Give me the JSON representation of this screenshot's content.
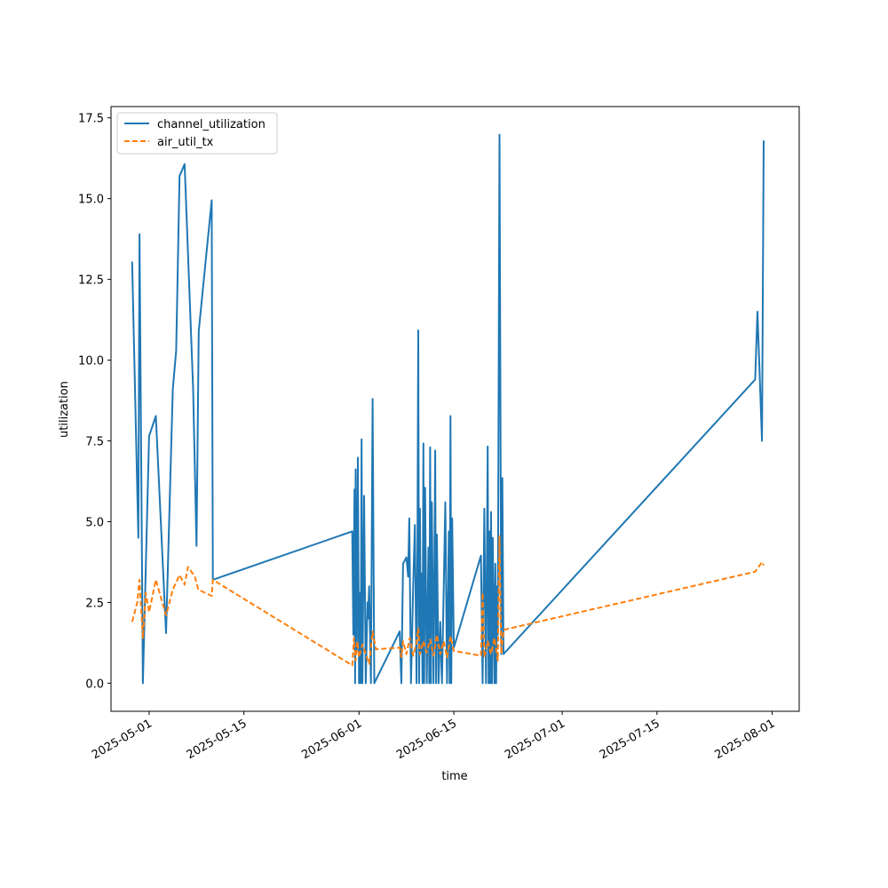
{
  "chart_data": {
    "type": "line",
    "title": "",
    "xlabel": "time",
    "ylabel": "utilization",
    "x_ticks": [
      "2025-05-01",
      "2025-05-15",
      "2025-06-01",
      "2025-06-15",
      "2025-07-01",
      "2025-07-15",
      "2025-08-01"
    ],
    "y_ticks": [
      "0.0",
      "2.5",
      "5.0",
      "7.5",
      "10.0",
      "12.5",
      "15.0",
      "17.5"
    ],
    "xlim": [
      "2025-04-25T09:00",
      "2025-08-05T00:00"
    ],
    "ylim": [
      -0.87,
      17.85
    ],
    "grid": false,
    "legend_position": "upper left",
    "series": [
      {
        "name": "channel_utilization",
        "color": "#1f77b4",
        "dash": "solid",
        "points": [
          [
            "2025-04-28T12:00",
            13.05
          ],
          [
            "2025-04-29T10:00",
            4.5
          ],
          [
            "2025-04-29T14:00",
            13.9
          ],
          [
            "2025-04-30T02:00",
            0.0
          ],
          [
            "2025-05-01T00:00",
            7.65
          ],
          [
            "2025-05-02T00:00",
            8.27
          ],
          [
            "2025-05-03T12:00",
            1.55
          ],
          [
            "2025-05-04T12:00",
            9.1
          ],
          [
            "2025-05-05T00:00",
            10.3
          ],
          [
            "2025-05-05T12:00",
            15.7
          ],
          [
            "2025-05-06T06:00",
            16.07
          ],
          [
            "2025-05-07T12:00",
            9.1
          ],
          [
            "2025-05-08T00:00",
            4.25
          ],
          [
            "2025-05-08T08:00",
            10.9
          ],
          [
            "2025-05-10T06:00",
            14.95
          ],
          [
            "2025-05-10T10:00",
            3.2
          ],
          [
            "2025-05-31T00:00",
            4.7
          ],
          [
            "2025-05-31T04:00",
            1.5
          ],
          [
            "2025-05-31T08:00",
            6.0
          ],
          [
            "2025-05-31T10:00",
            0.0
          ],
          [
            "2025-05-31T12:00",
            6.62
          ],
          [
            "2025-05-31T16:00",
            1.0
          ],
          [
            "2025-05-31T20:00",
            6.98
          ],
          [
            "2025-06-01T00:00",
            0.0
          ],
          [
            "2025-06-01T03:00",
            2.8
          ],
          [
            "2025-06-01T06:00",
            0.0
          ],
          [
            "2025-06-01T09:00",
            7.55
          ],
          [
            "2025-06-01T12:00",
            0.0
          ],
          [
            "2025-06-01T18:00",
            5.8
          ],
          [
            "2025-06-02T00:00",
            0.0
          ],
          [
            "2025-06-02T06:00",
            2.5
          ],
          [
            "2025-06-02T08:00",
            2.0
          ],
          [
            "2025-06-02T12:00",
            3.0
          ],
          [
            "2025-06-02T18:00",
            0.0
          ],
          [
            "2025-06-03T00:00",
            8.8
          ],
          [
            "2025-06-03T06:00",
            0.0
          ],
          [
            "2025-06-07T00:00",
            1.6
          ],
          [
            "2025-06-07T06:00",
            0.0
          ],
          [
            "2025-06-07T12:00",
            3.7
          ],
          [
            "2025-06-08T00:00",
            3.9
          ],
          [
            "2025-06-08T06:00",
            3.3
          ],
          [
            "2025-06-08T10:00",
            5.1
          ],
          [
            "2025-06-08T16:00",
            0.0
          ],
          [
            "2025-06-09T00:00",
            3.0
          ],
          [
            "2025-06-09T06:00",
            4.9
          ],
          [
            "2025-06-09T12:00",
            0.0
          ],
          [
            "2025-06-09T15:00",
            4.1
          ],
          [
            "2025-06-09T18:00",
            10.92
          ],
          [
            "2025-06-09T21:00",
            0.0
          ],
          [
            "2025-06-10T00:00",
            5.4
          ],
          [
            "2025-06-10T03:00",
            1.0
          ],
          [
            "2025-06-10T06:00",
            3.4
          ],
          [
            "2025-06-10T09:00",
            0.0
          ],
          [
            "2025-06-10T12:00",
            7.42
          ],
          [
            "2025-06-10T15:00",
            0.0
          ],
          [
            "2025-06-10T18:00",
            6.05
          ],
          [
            "2025-06-11T00:00",
            0.0
          ],
          [
            "2025-06-11T06:00",
            4.2
          ],
          [
            "2025-06-11T09:00",
            0.0
          ],
          [
            "2025-06-11T12:00",
            7.3
          ],
          [
            "2025-06-11T15:00",
            0.0
          ],
          [
            "2025-06-11T18:00",
            5.6
          ],
          [
            "2025-06-12T00:00",
            0.0
          ],
          [
            "2025-06-12T06:00",
            7.2
          ],
          [
            "2025-06-12T09:00",
            0.0
          ],
          [
            "2025-06-12T12:00",
            4.6
          ],
          [
            "2025-06-12T18:00",
            0.0
          ],
          [
            "2025-06-13T00:00",
            1.9
          ],
          [
            "2025-06-13T06:00",
            0.0
          ],
          [
            "2025-06-13T18:00",
            5.6
          ],
          [
            "2025-06-14T00:00",
            0.0
          ],
          [
            "2025-06-14T06:00",
            4.7
          ],
          [
            "2025-06-14T09:00",
            0.0
          ],
          [
            "2025-06-14T12:00",
            8.27
          ],
          [
            "2025-06-14T15:00",
            0.0
          ],
          [
            "2025-06-14T18:00",
            5.1
          ],
          [
            "2025-06-15T00:00",
            1.1
          ],
          [
            "2025-06-19T00:00",
            3.95
          ],
          [
            "2025-06-19T06:00",
            0.0
          ],
          [
            "2025-06-19T12:00",
            5.4
          ],
          [
            "2025-06-19T18:00",
            0.0
          ],
          [
            "2025-06-20T00:00",
            7.33
          ],
          [
            "2025-06-20T03:00",
            0.0
          ],
          [
            "2025-06-20T06:00",
            4.7
          ],
          [
            "2025-06-20T09:00",
            0.0
          ],
          [
            "2025-06-20T12:00",
            5.3
          ],
          [
            "2025-06-20T15:00",
            0.0
          ],
          [
            "2025-06-20T18:00",
            4.5
          ],
          [
            "2025-06-21T00:00",
            0.0
          ],
          [
            "2025-06-21T03:00",
            3.7
          ],
          [
            "2025-06-21T06:00",
            0.0
          ],
          [
            "2025-06-21T09:00",
            3.0
          ],
          [
            "2025-06-21T12:00",
            1.5
          ],
          [
            "2025-06-21T18:00",
            16.98
          ],
          [
            "2025-06-22T00:00",
            0.9
          ],
          [
            "2025-06-22T04:00",
            6.35
          ],
          [
            "2025-06-22T08:00",
            0.9
          ],
          [
            "2025-07-29T12:00",
            9.4
          ],
          [
            "2025-07-29T20:00",
            11.5
          ],
          [
            "2025-07-30T12:00",
            7.5
          ],
          [
            "2025-07-30T18:00",
            16.8
          ]
        ]
      },
      {
        "name": "air_util_tx",
        "color": "#ff7f0e",
        "dash": "dashed",
        "points": [
          [
            "2025-04-28T12:00",
            1.9
          ],
          [
            "2025-04-29T06:00",
            2.5
          ],
          [
            "2025-04-29T14:00",
            3.2
          ],
          [
            "2025-04-30T02:00",
            1.4
          ],
          [
            "2025-04-30T12:00",
            2.8
          ],
          [
            "2025-05-01T00:00",
            2.2
          ],
          [
            "2025-05-02T00:00",
            3.2
          ],
          [
            "2025-05-03T12:00",
            2.1
          ],
          [
            "2025-05-04T12:00",
            2.9
          ],
          [
            "2025-05-05T12:00",
            3.35
          ],
          [
            "2025-05-06T06:00",
            3.05
          ],
          [
            "2025-05-06T18:00",
            3.6
          ],
          [
            "2025-05-07T18:00",
            3.3
          ],
          [
            "2025-05-08T06:00",
            2.9
          ],
          [
            "2025-05-10T06:00",
            2.7
          ],
          [
            "2025-05-10T10:00",
            3.2
          ],
          [
            "2025-05-31T00:00",
            0.55
          ],
          [
            "2025-05-31T06:00",
            1.4
          ],
          [
            "2025-05-31T12:00",
            0.7
          ],
          [
            "2025-05-31T18:00",
            1.3
          ],
          [
            "2025-06-01T00:00",
            0.8
          ],
          [
            "2025-06-01T12:00",
            1.2
          ],
          [
            "2025-06-02T00:00",
            0.9
          ],
          [
            "2025-06-02T12:00",
            0.6
          ],
          [
            "2025-06-03T00:00",
            1.6
          ],
          [
            "2025-06-03T12:00",
            1.05
          ],
          [
            "2025-06-07T00:00",
            1.1
          ],
          [
            "2025-06-07T06:00",
            0.8
          ],
          [
            "2025-06-07T12:00",
            1.3
          ],
          [
            "2025-06-08T00:00",
            0.9
          ],
          [
            "2025-06-08T12:00",
            1.4
          ],
          [
            "2025-06-09T00:00",
            0.85
          ],
          [
            "2025-06-09T12:00",
            1.25
          ],
          [
            "2025-06-09T18:00",
            1.7
          ],
          [
            "2025-06-10T00:00",
            0.9
          ],
          [
            "2025-06-10T12:00",
            1.3
          ],
          [
            "2025-06-11T00:00",
            0.95
          ],
          [
            "2025-06-11T12:00",
            1.35
          ],
          [
            "2025-06-12T00:00",
            0.85
          ],
          [
            "2025-06-12T12:00",
            1.5
          ],
          [
            "2025-06-13T00:00",
            0.9
          ],
          [
            "2025-06-13T12:00",
            1.3
          ],
          [
            "2025-06-14T00:00",
            0.8
          ],
          [
            "2025-06-14T12:00",
            1.45
          ],
          [
            "2025-06-15T00:00",
            1.0
          ],
          [
            "2025-06-19T00:00",
            0.85
          ],
          [
            "2025-06-19T06:00",
            2.8
          ],
          [
            "2025-06-19T12:00",
            0.8
          ],
          [
            "2025-06-20T00:00",
            1.3
          ],
          [
            "2025-06-20T12:00",
            0.9
          ],
          [
            "2025-06-21T00:00",
            1.4
          ],
          [
            "2025-06-21T12:00",
            0.7
          ],
          [
            "2025-06-21T18:00",
            4.55
          ],
          [
            "2025-06-22T00:00",
            0.9
          ],
          [
            "2025-06-22T08:00",
            1.65
          ],
          [
            "2025-07-29T12:00",
            3.45
          ],
          [
            "2025-07-30T12:00",
            3.75
          ],
          [
            "2025-07-30T18:00",
            3.65
          ]
        ]
      }
    ]
  }
}
